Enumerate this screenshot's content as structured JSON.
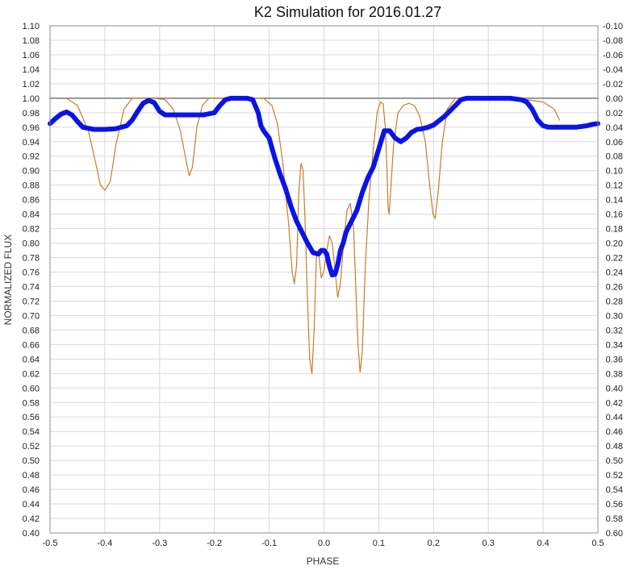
{
  "chart_data": {
    "type": "line",
    "title": "K2 Simulation for 2016.01.27",
    "xlabel": "PHASE",
    "ylabel": "NORMALIZED FLUX",
    "xlim": [
      -0.5,
      0.5
    ],
    "ylim": [
      0.4,
      1.1
    ],
    "y2lim": [
      -0.1,
      0.6
    ],
    "y2_reversed": true,
    "grid": true,
    "reference_line_y": 1.0,
    "x_ticks": [
      "-0.5",
      "-0.4",
      "-0.3",
      "-0.2",
      "-0.1",
      "0.0",
      "0.1",
      "0.2",
      "0.3",
      "0.4",
      "0.5"
    ],
    "y_ticks": [
      "1.10",
      "1.08",
      "1.06",
      "1.04",
      "1.02",
      "1.00",
      "0.98",
      "0.96",
      "0.94",
      "0.92",
      "0.90",
      "0.88",
      "0.86",
      "0.84",
      "0.82",
      "0.80",
      "0.78",
      "0.76",
      "0.74",
      "0.72",
      "0.70",
      "0.68",
      "0.66",
      "0.64",
      "0.62",
      "0.60",
      "0.58",
      "0.56",
      "0.54",
      "0.52",
      "0.50",
      "0.48",
      "0.46",
      "0.44",
      "0.42",
      "0.40"
    ],
    "y2_ticks": [
      "-0.10",
      "-0.08",
      "-0.06",
      "-0.04",
      "-0.02",
      "0.00",
      "0.02",
      "0.04",
      "0.06",
      "0.08",
      "0.10",
      "0.12",
      "0.14",
      "0.16",
      "0.18",
      "0.20",
      "0.22",
      "0.24",
      "0.26",
      "0.28",
      "0.30",
      "0.32",
      "0.34",
      "0.36",
      "0.38",
      "0.40",
      "0.42",
      "0.44",
      "0.46",
      "0.48",
      "0.50",
      "0.52",
      "0.54",
      "0.56",
      "0.58",
      "0.60"
    ],
    "series": [
      {
        "color": "#c87b2e",
        "style": "thin",
        "x": [
          -0.47,
          -0.45,
          -0.43,
          -0.415,
          -0.408,
          -0.4,
          -0.39,
          -0.38,
          -0.365,
          -0.35,
          -0.33,
          -0.31,
          -0.29,
          -0.275,
          -0.262,
          -0.252,
          -0.246,
          -0.24,
          -0.232,
          -0.222,
          -0.21,
          -0.19,
          -0.17,
          -0.15,
          -0.13,
          -0.11,
          -0.095,
          -0.085,
          -0.075,
          -0.065,
          -0.058,
          -0.054,
          -0.05,
          -0.046,
          -0.042,
          -0.038,
          -0.034,
          -0.03,
          -0.026,
          -0.022,
          -0.018,
          -0.014,
          -0.01,
          -0.005,
          0.0,
          0.005,
          0.01,
          0.015,
          0.02,
          0.025,
          0.03,
          0.036,
          0.042,
          0.048,
          0.054,
          0.058,
          0.062,
          0.066,
          0.07,
          0.075,
          0.082,
          0.09,
          0.097,
          0.103,
          0.108,
          0.112,
          0.115,
          0.117,
          0.119,
          0.122,
          0.127,
          0.135,
          0.145,
          0.155,
          0.165,
          0.175,
          0.185,
          0.193,
          0.199,
          0.203,
          0.209,
          0.216,
          0.225,
          0.24,
          0.26,
          0.3,
          0.35,
          0.4,
          0.42,
          0.43
        ],
        "y": [
          1.0,
          0.99,
          0.955,
          0.905,
          0.88,
          0.873,
          0.885,
          0.935,
          0.985,
          1.0,
          1.0,
          1.0,
          0.998,
          0.985,
          0.955,
          0.915,
          0.893,
          0.905,
          0.96,
          0.99,
          1.0,
          1.0,
          1.0,
          1.0,
          1.0,
          1.0,
          0.99,
          0.965,
          0.91,
          0.83,
          0.76,
          0.744,
          0.77,
          0.87,
          0.91,
          0.9,
          0.82,
          0.72,
          0.64,
          0.62,
          0.68,
          0.78,
          0.79,
          0.752,
          0.762,
          0.79,
          0.81,
          0.8,
          0.765,
          0.725,
          0.745,
          0.8,
          0.845,
          0.855,
          0.82,
          0.74,
          0.66,
          0.622,
          0.65,
          0.76,
          0.86,
          0.93,
          0.98,
          0.995,
          0.992,
          0.96,
          0.9,
          0.85,
          0.84,
          0.875,
          0.935,
          0.98,
          0.99,
          0.993,
          0.99,
          0.975,
          0.94,
          0.88,
          0.84,
          0.834,
          0.875,
          0.94,
          0.985,
          1.0,
          1.0,
          1.0,
          1.0,
          0.995,
          0.985,
          0.97
        ]
      },
      {
        "color": "#0a14e6",
        "style": "thick",
        "x": [
          -0.5,
          -0.49,
          -0.48,
          -0.47,
          -0.46,
          -0.45,
          -0.44,
          -0.42,
          -0.4,
          -0.38,
          -0.36,
          -0.35,
          -0.34,
          -0.33,
          -0.32,
          -0.31,
          -0.3,
          -0.29,
          -0.28,
          -0.26,
          -0.24,
          -0.22,
          -0.2,
          -0.19,
          -0.18,
          -0.17,
          -0.16,
          -0.14,
          -0.13,
          -0.12,
          -0.115,
          -0.11,
          -0.1,
          -0.09,
          -0.08,
          -0.07,
          -0.06,
          -0.05,
          -0.04,
          -0.03,
          -0.02,
          -0.01,
          -0.005,
          0.0,
          0.005,
          0.01,
          0.015,
          0.02,
          0.025,
          0.03,
          0.035,
          0.04,
          0.05,
          0.06,
          0.07,
          0.08,
          0.09,
          0.1,
          0.11,
          0.12,
          0.13,
          0.14,
          0.15,
          0.16,
          0.17,
          0.18,
          0.19,
          0.2,
          0.22,
          0.24,
          0.25,
          0.26,
          0.27,
          0.28,
          0.29,
          0.3,
          0.32,
          0.34,
          0.36,
          0.37,
          0.38,
          0.39,
          0.4,
          0.41,
          0.42,
          0.44,
          0.46,
          0.48,
          0.49,
          0.5
        ],
        "y": [
          0.965,
          0.972,
          0.978,
          0.981,
          0.977,
          0.968,
          0.96,
          0.957,
          0.957,
          0.958,
          0.962,
          0.97,
          0.982,
          0.993,
          0.997,
          0.994,
          0.982,
          0.977,
          0.977,
          0.977,
          0.977,
          0.977,
          0.98,
          0.99,
          0.998,
          1.0,
          1.0,
          1.0,
          0.998,
          0.98,
          0.962,
          0.955,
          0.945,
          0.918,
          0.895,
          0.875,
          0.85,
          0.83,
          0.815,
          0.8,
          0.787,
          0.785,
          0.79,
          0.79,
          0.785,
          0.768,
          0.756,
          0.757,
          0.77,
          0.79,
          0.8,
          0.815,
          0.83,
          0.845,
          0.87,
          0.89,
          0.905,
          0.93,
          0.955,
          0.955,
          0.945,
          0.94,
          0.945,
          0.953,
          0.957,
          0.958,
          0.96,
          0.963,
          0.975,
          0.99,
          0.998,
          1.0,
          1.0,
          1.0,
          1.0,
          1.0,
          1.0,
          1.0,
          0.998,
          0.995,
          0.985,
          0.97,
          0.962,
          0.96,
          0.96,
          0.96,
          0.96,
          0.962,
          0.964,
          0.965
        ]
      }
    ]
  }
}
